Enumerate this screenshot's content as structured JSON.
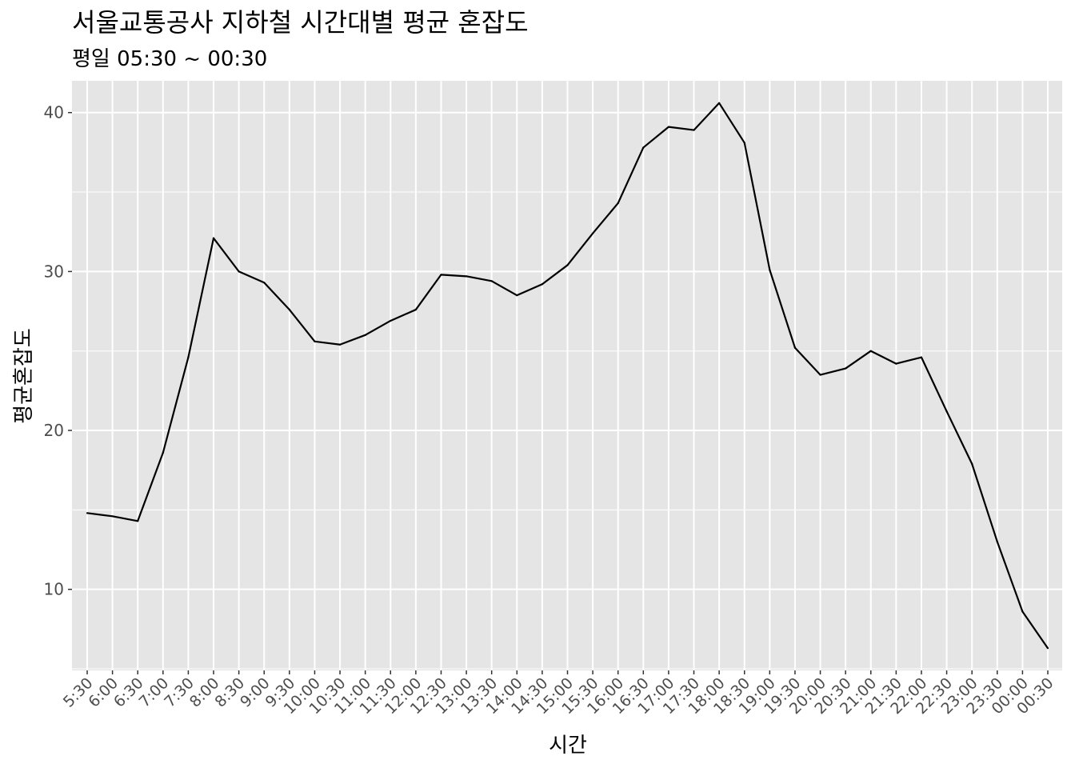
{
  "chart_data": {
    "type": "line",
    "title": "서울교통공사 지하철 시간대별 평균 혼잡도",
    "subtitle": "평일 05:30 ~ 00:30",
    "xlabel": "시간",
    "ylabel": "평균혼잡도",
    "categories": [
      "5:30",
      "6:00",
      "6:30",
      "7:00",
      "7:30",
      "8:00",
      "8:30",
      "9:00",
      "9:30",
      "10:00",
      "10:30",
      "11:00",
      "11:30",
      "12:00",
      "12:30",
      "13:00",
      "13:30",
      "14:00",
      "14:30",
      "15:00",
      "15:30",
      "16:00",
      "16:30",
      "17:00",
      "17:30",
      "18:00",
      "18:30",
      "19:00",
      "19:30",
      "20:00",
      "20:30",
      "21:00",
      "21:30",
      "22:00",
      "22:30",
      "23:00",
      "23:30",
      "00:00",
      "00:30"
    ],
    "series": [
      {
        "values": [
          14.8,
          14.6,
          14.3,
          18.6,
          24.6,
          32.1,
          30.0,
          29.3,
          27.6,
          25.6,
          25.4,
          26.0,
          26.9,
          27.6,
          29.8,
          29.7,
          29.4,
          28.5,
          29.2,
          30.4,
          32.4,
          34.3,
          37.8,
          39.1,
          38.9,
          40.6,
          38.1,
          30.1,
          25.2,
          23.5,
          23.9,
          25.0,
          24.2,
          24.6,
          21.2,
          17.9,
          13.0,
          8.6,
          6.3
        ],
        "color": "#000000"
      }
    ],
    "yticks": [
      "10",
      "20",
      "30",
      "40"
    ],
    "ylim": [
      4.9,
      42.0
    ],
    "grid": true,
    "legend": "none",
    "panel_color": "#e5e5e5",
    "grid_color": "#ffffff"
  }
}
